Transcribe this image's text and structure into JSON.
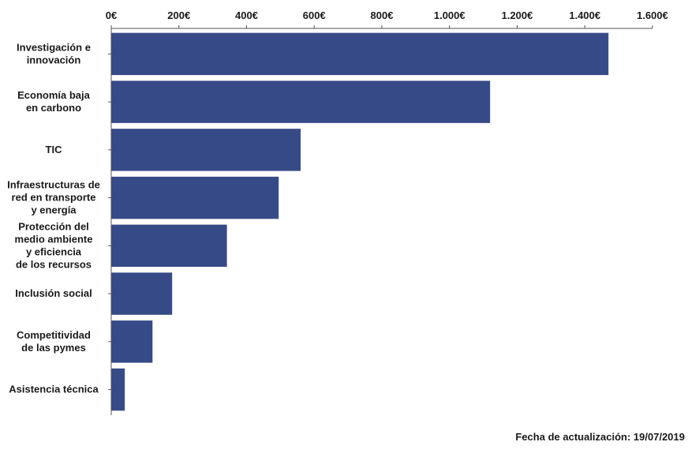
{
  "chart_data": {
    "type": "bar",
    "orientation": "horizontal",
    "title": "",
    "xlabel": "",
    "ylabel": "",
    "xlim": [
      0,
      1600
    ],
    "x_tick_labels": [
      "0€",
      "200€",
      "400€",
      "600€",
      "800€",
      "1.000€",
      "1.200€",
      "1.400€",
      "1.600€"
    ],
    "x_ticks": [
      0,
      200,
      400,
      600,
      800,
      1000,
      1200,
      1400,
      1600
    ],
    "axis_position": "top",
    "grid": false,
    "legend": "none",
    "bar_color": "#364a87",
    "categories": [
      [
        "Investigación e",
        "innovación"
      ],
      [
        "Economía baja",
        "en carbono"
      ],
      [
        "TIC"
      ],
      [
        "Infraestructuras de",
        "red en transporte",
        "y energía"
      ],
      [
        "Protección del",
        "medio ambiente",
        "y eficiencia",
        "de los recursos"
      ],
      [
        "Inclusión social"
      ],
      [
        "Competitividad",
        "de las pymes"
      ],
      [
        "Asistencia técnica"
      ]
    ],
    "values": [
      1470,
      1120,
      560,
      495,
      342,
      180,
      122,
      40
    ]
  },
  "footer": {
    "update_note": "Fecha de actualización: 19/07/2019"
  }
}
